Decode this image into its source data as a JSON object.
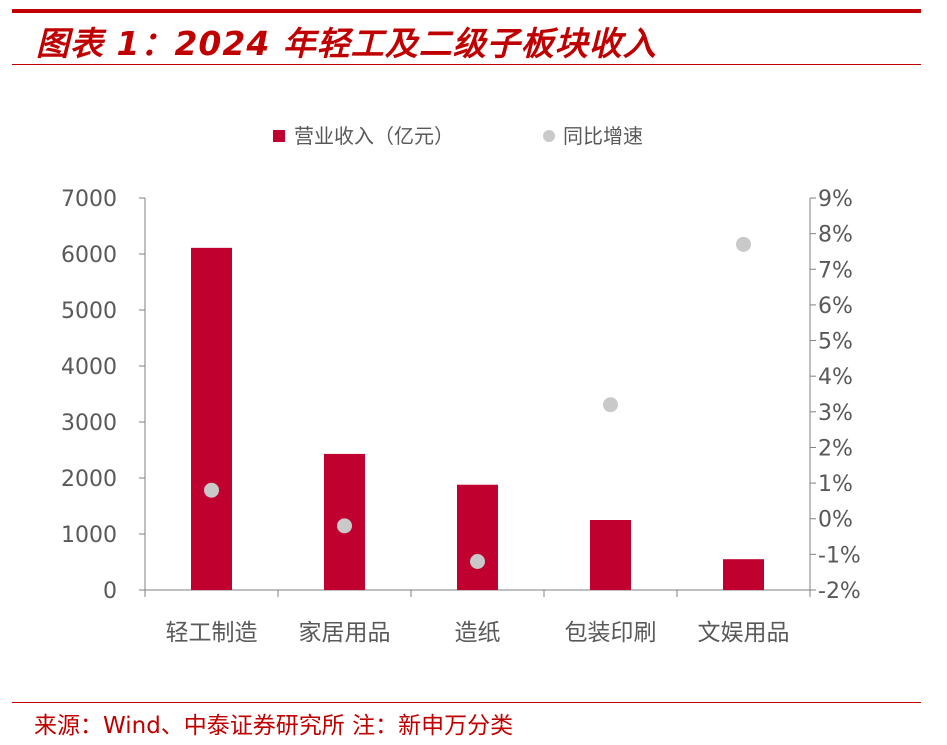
{
  "title": "图表 1：2024 年轻工及二级子板块收入",
  "source": "来源：Wind、中泰证券研究所 注：新申万分类",
  "colors": {
    "accent": "#c00000",
    "bar": "#c0002f",
    "dot": "#c9c9c9",
    "axis": "#808080",
    "text": "#595959"
  },
  "chart_data": {
    "type": "bar",
    "categories": [
      "轻工制造",
      "家居用品",
      "造纸",
      "包装印刷",
      "文娱用品"
    ],
    "series": [
      {
        "name": "营业收入（亿元）",
        "kind": "bar",
        "axis": "left",
        "values": [
          6110,
          2430,
          1880,
          1250,
          550
        ]
      },
      {
        "name": "同比增速",
        "kind": "scatter",
        "axis": "right",
        "values": [
          0.8,
          -0.2,
          -1.2,
          3.2,
          7.7
        ]
      }
    ],
    "yleft": {
      "min": 0,
      "max": 7000,
      "ticks": [
        "0",
        "1000",
        "2000",
        "3000",
        "4000",
        "5000",
        "6000",
        "7000"
      ]
    },
    "yright": {
      "min": -2,
      "max": 9,
      "ticks": [
        "-2%",
        "-1%",
        "0%",
        "1%",
        "2%",
        "3%",
        "4%",
        "5%",
        "6%",
        "7%",
        "8%",
        "9%"
      ]
    },
    "legend": "top-center"
  }
}
